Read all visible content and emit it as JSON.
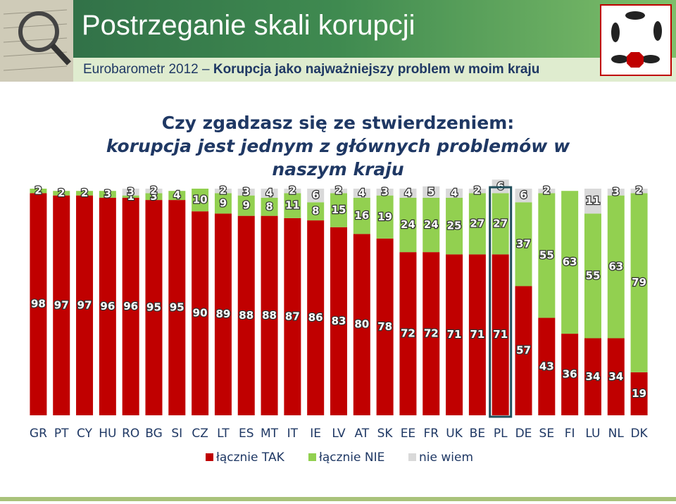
{
  "header": {
    "title": "Postrzeganie skali korupcji",
    "subtitle_prefix": "Eurobarometr 2012 –",
    "subtitle_bold": "Korupcja jako najważniejszy problem w moim kraju"
  },
  "chart_data": {
    "type": "stacked_bar",
    "title": "Czy zgadzasz się ze stwierdzeniem:",
    "subtitle": "korupcja jest jednym z głównych problemów w naszym kraju",
    "categories": [
      "GR",
      "PT",
      "CY",
      "HU",
      "RO",
      "BG",
      "SI",
      "CZ",
      "LT",
      "ES",
      "MT",
      "IT",
      "IE",
      "LV",
      "AT",
      "SK",
      "EE",
      "FR",
      "UK",
      "BE",
      "PL",
      "DE",
      "SE",
      "FI",
      "LU",
      "NL",
      "DK"
    ],
    "highlight_category": "PL",
    "ylim": [
      0,
      100
    ],
    "series": [
      {
        "name": "łącznie TAK",
        "color": "#c00000",
        "values": [
          98,
          97,
          97,
          96,
          96,
          95,
          95,
          90,
          89,
          88,
          88,
          87,
          86,
          83,
          80,
          78,
          72,
          72,
          71,
          71,
          71,
          57,
          43,
          36,
          34,
          34,
          19
        ]
      },
      {
        "name": "łącznie NIE",
        "color": "#92d050",
        "values": [
          2,
          2,
          2,
          3,
          1,
          3,
          4,
          10,
          9,
          9,
          8,
          11,
          8,
          15,
          16,
          19,
          24,
          24,
          25,
          27,
          27,
          37,
          55,
          63,
          55,
          63,
          79
        ]
      },
      {
        "name": "nie wiem",
        "color": "#d9d9d9",
        "values": [
          null,
          null,
          null,
          null,
          3,
          2,
          null,
          null,
          2,
          3,
          4,
          2,
          6,
          2,
          4,
          3,
          4,
          5,
          4,
          2,
          6,
          6,
          2,
          null,
          11,
          3,
          2
        ]
      }
    ],
    "legend": "bottom"
  }
}
